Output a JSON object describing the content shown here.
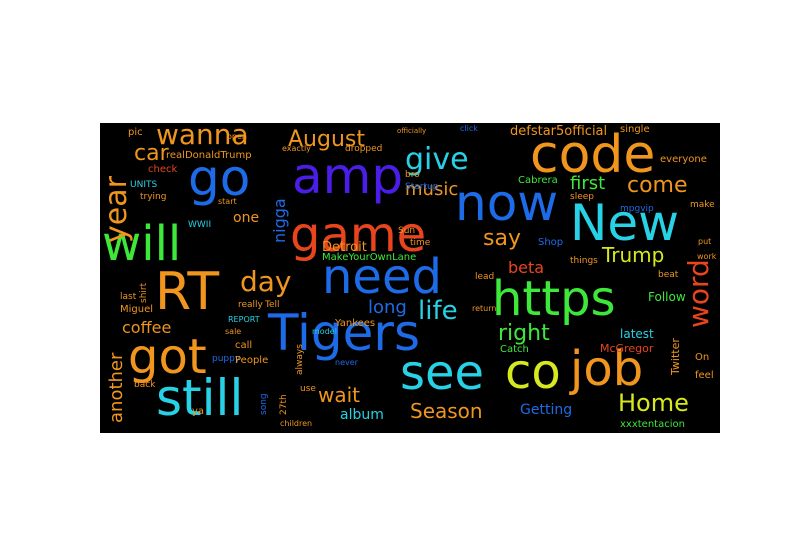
{
  "colors": {
    "background": "#000000",
    "orange": "#f0961e",
    "red": "#e8451e",
    "blue": "#1e6be8",
    "cyan": "#28d2e6",
    "green": "#3ee83a",
    "yellow": "#d6e81e",
    "violet": "#4a1ee8"
  },
  "words": {
    "code": "code",
    "now": "now",
    "amp": "amp",
    "go": "go",
    "New": "New",
    "will": "will",
    "game": "game",
    "need": "need",
    "https": "https",
    "RT": "RT",
    "got": "got",
    "Tigers": "Tigers",
    "still": "still",
    "see": "see",
    "co": "co",
    "job": "job",
    "wanna": "wanna",
    "give": "give",
    "August": "August",
    "year": "year",
    "car": "car",
    "music": "music",
    "first": "first",
    "come": "come",
    "say": "say",
    "Trump": "Trump",
    "day": "day",
    "life": "life",
    "long": "long",
    "right": "right",
    "word": "word",
    "Home": "Home",
    "Season": "Season",
    "wait": "wait",
    "album": "album",
    "coffee": "coffee",
    "another": "another",
    "beta": "beta",
    "Getting": "Getting",
    "nigga": "nigga",
    "Detroit": "Detroit",
    "MakeYourOwnLane": "MakeYourOwnLane",
    "Follow": "Follow",
    "latest": "latest",
    "McGregor": "McGregor",
    "xxxtentacion": "xxxtentacion",
    "Twitter": "Twitter",
    "Cabrera": "Cabrera",
    "Catch": "Catch",
    "Yankees": "Yankees",
    "one": "one",
    "Shop": "Shop",
    "Startup": "Startup",
    "realDonaldTrump": "realDonaldTrump",
    "defstar5official": "defstar5official",
    "pic": "pic",
    "check": "check",
    "UNITS": "UNITS",
    "trying": "trying",
    "Miguel": "Miguel",
    "shirt": "shirt",
    "puppy": "puppy",
    "back": "back",
    "ya": "ya",
    "People": "People",
    "call": "call",
    "really": "really",
    "Tell": "Tell",
    "REPORT": "REPORT",
    "model": "model",
    "sale": "sale",
    "use": "use",
    "27th": "27th",
    "song": "song",
    "always": "always",
    "never": "never",
    "children": "children",
    "Sun": "Sun",
    "time": "time",
    "lead": "lead",
    "return": "return",
    "sleep": "sleep",
    "mpgvip": "mpgvip",
    "things": "things",
    "beat": "beat",
    "feel": "feel",
    "On": "On",
    "everyone": "everyone",
    "single": "single",
    "make": "make",
    "open": "open",
    "last": "last",
    "dropped": "dropped",
    "bro": "bro",
    "start": "start",
    "click": "click",
    "officially": "officially",
    "exactly": "exactly",
    "WWII": "WWII",
    "work": "work",
    "put": "put"
  }
}
